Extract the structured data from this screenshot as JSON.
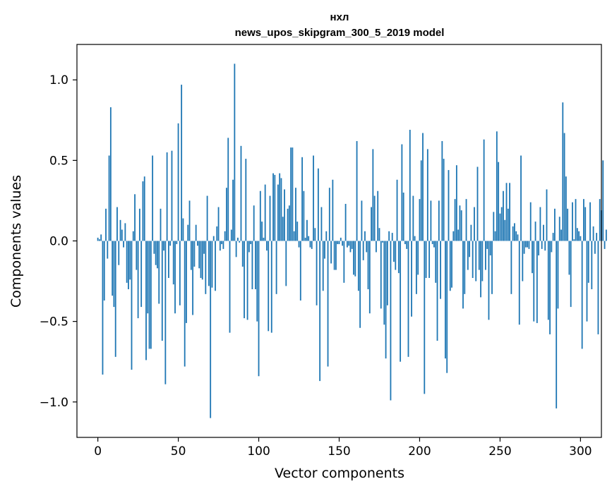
{
  "chart_data": {
    "type": "bar",
    "title": "нхл",
    "subtitle": "news_upos_skipgram_300_5_2019 model",
    "xlabel": "Vector components",
    "ylabel": "Components values",
    "xlim": [
      -13,
      313
    ],
    "ylim": [
      -1.22,
      1.22
    ],
    "xticks": [
      0,
      50,
      100,
      150,
      200,
      250,
      300
    ],
    "yticks": [
      -1.0,
      -0.5,
      0.0,
      0.5,
      1.0
    ],
    "xtick_labels": [
      "0",
      "50",
      "100",
      "150",
      "200",
      "250",
      "300"
    ],
    "ytick_labels": [
      "−1.0",
      "−0.5",
      "0.0",
      "0.5",
      "1.0"
    ],
    "bar_color": "#1f77b4",
    "values": [
      0.02,
      0.01,
      0.04,
      -0.83,
      -0.37,
      0.2,
      -0.11,
      0.53,
      0.83,
      -0.34,
      -0.41,
      -0.72,
      0.21,
      -0.15,
      0.13,
      0.07,
      -0.04,
      0.11,
      -0.26,
      -0.3,
      -0.24,
      -0.8,
      0.06,
      0.29,
      -0.18,
      -0.48,
      0.2,
      -0.41,
      0.37,
      0.4,
      -0.74,
      -0.45,
      -0.67,
      -0.67,
      0.53,
      -0.08,
      -0.15,
      -0.17,
      -0.39,
      0.2,
      -0.62,
      -0.06,
      -0.89,
      0.55,
      -0.23,
      -0.03,
      0.56,
      -0.27,
      -0.45,
      -0.02,
      0.73,
      -0.4,
      0.97,
      0.14,
      -0.78,
      -0.51,
      0.1,
      0.25,
      -0.18,
      -0.46,
      -0.16,
      0.1,
      -0.03,
      -0.17,
      -0.23,
      -0.24,
      -0.08,
      -0.33,
      0.28,
      -0.28,
      -1.1,
      -0.29,
      0.03,
      -0.31,
      0.09,
      0.21,
      -0.06,
      -0.02,
      -0.05,
      0.06,
      0.33,
      0.64,
      -0.57,
      0.07,
      0.38,
      1.1,
      -0.1,
      0.02,
      -0.01,
      0.59,
      -0.16,
      -0.48,
      0.51,
      -0.49,
      -0.07,
      -0.02,
      -0.3,
      0.22,
      -0.3,
      -0.5,
      -0.84,
      0.31,
      0.12,
      0.02,
      0.35,
      -0.06,
      -0.56,
      0.28,
      -0.57,
      0.42,
      0.41,
      -0.33,
      0.35,
      0.42,
      0.39,
      0.15,
      0.32,
      -0.28,
      0.2,
      0.22,
      0.58,
      0.58,
      0.06,
      0.33,
      0.12,
      -0.04,
      -0.37,
      0.52,
      0.31,
      0.02,
      0.13,
      0.03,
      -0.04,
      -0.05,
      0.53,
      0.08,
      -0.4,
      0.45,
      -0.87,
      0.21,
      -0.31,
      -0.11,
      0.06,
      -0.78,
      0.33,
      -0.14,
      0.38,
      -0.18,
      -0.18,
      -0.02,
      -0.02,
      0.02,
      -0.03,
      -0.26,
      0.23,
      -0.04,
      -0.03,
      -0.07,
      -0.05,
      -0.21,
      -0.22,
      0.62,
      -0.31,
      -0.54,
      0.25,
      -0.12,
      0.06,
      -0.07,
      -0.3,
      -0.45,
      0.21,
      0.57,
      0.28,
      -0.07,
      0.31,
      0.08,
      -0.42,
      -0.01,
      -0.52,
      -0.73,
      -0.4,
      0.06,
      -0.99,
      0.05,
      -0.13,
      -0.18,
      0.38,
      -0.2,
      -0.75,
      0.6,
      0.3,
      -0.02,
      -0.05,
      -0.72,
      0.69,
      -0.47,
      0.28,
      0.03,
      -0.33,
      -0.21,
      0.26,
      0.5,
      0.67,
      -0.95,
      -0.23,
      0.57,
      -0.23,
      0.25,
      -0.02,
      -0.04,
      -0.26,
      -0.62,
      0.25,
      -0.36,
      0.62,
      0.51,
      -0.73,
      -0.82,
      0.44,
      -0.31,
      -0.29,
      0.06,
      0.26,
      0.47,
      0.07,
      0.22,
      0.19,
      -0.42,
      -0.33,
      0.26,
      -0.18,
      -0.1,
      0.1,
      -0.23,
      0.21,
      -0.25,
      0.46,
      -0.18,
      -0.35,
      -0.25,
      0.63,
      -0.18,
      -0.05,
      -0.49,
      -0.09,
      -0.33,
      0.18,
      0.06,
      0.68,
      0.49,
      0.17,
      0.21,
      0.31,
      0.13,
      0.36,
      0.2,
      0.36,
      -0.33,
      0.09,
      0.11,
      0.06,
      0.04,
      -0.52,
      0.53,
      -0.25,
      -0.08,
      -0.04,
      -0.04,
      -0.05,
      0.24,
      -0.2,
      -0.5,
      0.12,
      -0.51,
      -0.09,
      0.21,
      -0.05,
      0.1,
      -0.06,
      0.32,
      -0.49,
      -0.58,
      -0.07,
      0.05,
      0.2,
      -1.04,
      -0.42,
      0.15,
      0.07,
      0.86,
      0.67,
      0.4,
      0.2,
      -0.21,
      -0.41,
      0.24,
      0.01,
      0.26,
      0.08,
      0.06,
      0.03,
      -0.67,
      0.26,
      0.21,
      -0.5,
      -0.26,
      0.24,
      -0.3,
      0.09,
      -0.08,
      0.05,
      -0.58,
      0.26,
      0.19,
      0.5,
      -0.05,
      0.07
    ]
  }
}
